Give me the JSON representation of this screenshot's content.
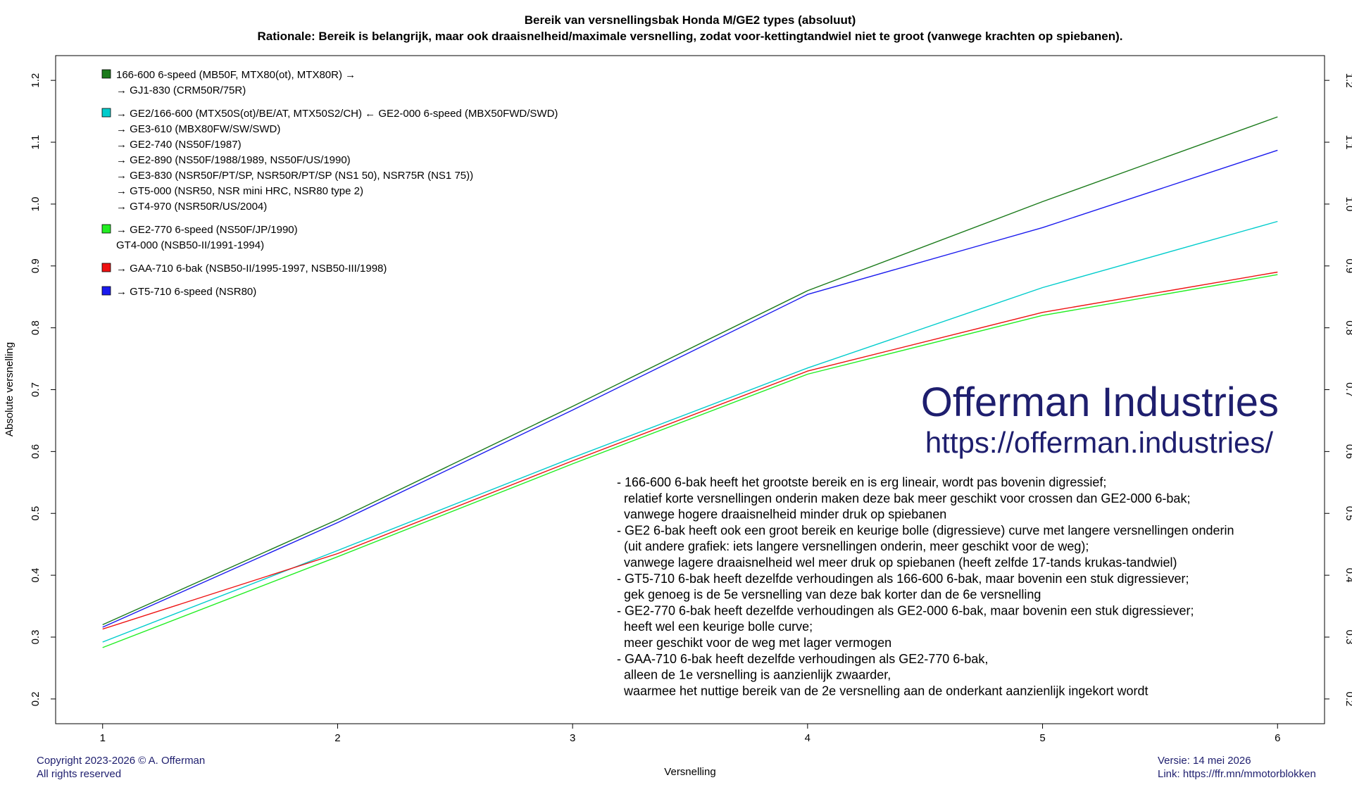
{
  "chart_data": {
    "type": "line",
    "title": "Bereik van versnellingsbak Honda M/GE2 types (absoluut)",
    "subtitle": "Rationale: Bereik is belangrijk, maar ook draaisnelheid/maximale versnelling, zodat voor-kettingtandwiel niet te groot (vanwege krachten op spiebanen).",
    "xlabel": "Versnelling",
    "ylabel": "Absolute versnelling",
    "x": [
      1,
      2,
      3,
      4,
      5,
      6
    ],
    "xlim": [
      0.8,
      6.2
    ],
    "ylim": [
      0.16,
      1.24
    ],
    "x_ticks": [
      1,
      2,
      3,
      4,
      5,
      6
    ],
    "y_ticks": [
      0.2,
      0.3,
      0.4,
      0.5,
      0.6,
      0.7,
      0.8,
      0.9,
      1.0,
      1.1,
      1.2
    ],
    "y_tick_labels": [
      "0.2",
      "0.3",
      "0.4",
      "0.5",
      "0.6",
      "0.7",
      "0.8",
      "0.9",
      "1.0",
      "1.1",
      "1.2"
    ],
    "grid": false,
    "legend_position": "top-left",
    "series": [
      {
        "color": "#1a7a1a",
        "values": [
          0.32,
          0.49,
          0.673,
          0.86,
          1.004,
          1.141
        ],
        "legend_lines": [
          "166-600 6-speed (MB50F, MTX80(ot), MTX80R) →",
          "→ GJ1-830 (CRM50R/75R)"
        ]
      },
      {
        "color": "#00cccc",
        "values": [
          0.292,
          0.44,
          0.59,
          0.735,
          0.865,
          0.972
        ],
        "legend_lines": [
          "→ GE2/166-600 (MTX50S(ot)/BE/AT, MTX50S2/CH) ← GE2-000 6-speed (MBX50FWD/SWD)",
          "→ GE3-610 (MBX80FW/SW/SWD)",
          "→ GE2-740 (NS50F/1987)",
          "→ GE2-890 (NS50F/1988/1989, NS50F/US/1990)",
          "→ GE3-830 (NSR50F/PT/SP, NSR50R/PT/SP (NS1 50), NSR75R (NS1 75))",
          "→ GT5-000 (NSR50, NSR mini HRC, NSR80 type 2)",
          "→ GT4-970 (NSR50R/US/2004)"
        ]
      },
      {
        "color": "#22ee22",
        "values": [
          0.283,
          0.43,
          0.58,
          0.725,
          0.82,
          0.886
        ],
        "legend_lines": [
          "→ GE2-770 6-speed (NS50F/JP/1990)",
          "GT4-000 (NSB50-II/1991-1994)"
        ]
      },
      {
        "color": "#ee1111",
        "values": [
          0.313,
          0.435,
          0.585,
          0.73,
          0.825,
          0.89
        ],
        "legend_lines": [
          "→ GAA-710 6-bak (NSB50-II/1995-1997, NSB50-III/1998)"
        ]
      },
      {
        "color": "#1a1aee",
        "values": [
          0.316,
          0.485,
          0.667,
          0.854,
          0.962,
          1.087
        ],
        "legend_lines": [
          "→ GT5-710 6-speed (NSR80)"
        ]
      }
    ],
    "annotations": [
      "- 166-600 6-bak heeft het grootste bereik en is erg lineair, wordt pas bovenin digressief;",
      "  relatief korte versnellingen onderin maken deze bak meer geschikt voor crossen dan GE2-000 6-bak;",
      "  vanwege hogere draaisnelheid minder druk op spiebanen",
      "- GE2 6-bak heeft ook een groot bereik en keurige bolle (digressieve) curve met langere versnellingen onderin",
      "  (uit andere grafiek: iets langere versnellingen onderin, meer geschikt voor de weg);",
      "  vanwege lagere draaisnelheid wel meer druk op spiebanen (heeft zelfde 17-tands krukas-tandwiel)",
      "- GT5-710 6-bak heeft dezelfde verhoudingen als 166-600 6-bak, maar bovenin een stuk digressiever;",
      "  gek genoeg is de 5e versnelling van deze bak korter dan de 6e versnelling",
      "- GE2-770 6-bak heeft dezelfde verhoudingen als GE2-000 6-bak, maar bovenin een stuk digressiever;",
      "  heeft wel een keurige bolle curve;",
      "  meer geschikt voor de weg met lager vermogen",
      "- GAA-710 6-bak heeft dezelfde verhoudingen als GE2-770 6-bak,",
      "  alleen de 1e versnelling is aanzienlijk zwaarder,",
      "  waarmee het nuttige bereik van de 2e versnelling aan de onderkant aanzienlijk ingekort wordt"
    ]
  },
  "watermark": {
    "name": "Offerman Industries",
    "url": "https://offerman.industries/",
    "color": "#1e1e6e"
  },
  "footer": {
    "copyright_line1": "Copyright 2023-2026 © A. Offerman",
    "copyright_line2": "All rights reserved",
    "version": "Versie: 14 mei 2026",
    "link": "Link: https://ffr.mn/mmotorblokken"
  }
}
